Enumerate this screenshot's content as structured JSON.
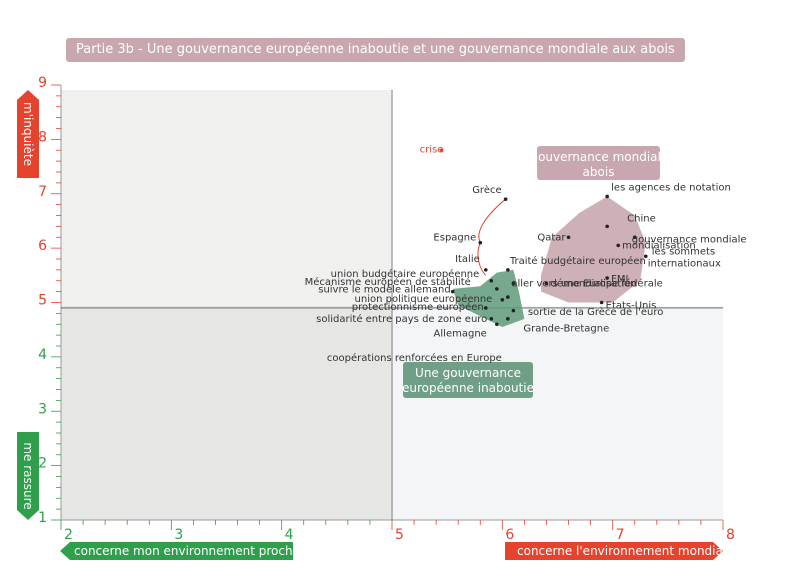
{
  "title": "Partie 3b - Une gouvernance européenne inaboutie et une gouvernance mondiale aux abois",
  "colors": {
    "title_bg": "#c9a7af",
    "red": "#e5432d",
    "green": "#2f9f4b",
    "green_zone": "#5f9a7a",
    "pink_zone": "#c9a7af"
  },
  "axis_labels": {
    "x_left": "concerne mon environnement proche",
    "x_right": "concerne l'environnement mondial",
    "y_top": "m'inquiète",
    "y_bottom": "me rassure"
  },
  "chart_data": {
    "type": "scatter",
    "xlim": [
      2,
      8
    ],
    "ylim": [
      1,
      9
    ],
    "x_ticks": [
      "2",
      "3",
      "4",
      "5",
      "6",
      "7",
      "8"
    ],
    "y_ticks": [
      "1",
      "2",
      "3",
      "4",
      "5",
      "6",
      "7",
      "8",
      "9"
    ],
    "grid": false,
    "groups": [
      {
        "label": "Une gouvernance européenne inaboutie"
      },
      {
        "label": "Une gouvernance mondiale aux abois"
      }
    ],
    "points": [
      {
        "label": "crise",
        "x": 5.45,
        "y": 7.8
      },
      {
        "label": "Grèce",
        "x": 6.03,
        "y": 6.9
      },
      {
        "label": "Espagne",
        "x": 5.8,
        "y": 6.1
      },
      {
        "label": "Italie",
        "x": 5.85,
        "y": 5.6
      },
      {
        "label": "union budgétaire européenne",
        "x": 5.9,
        "y": 5.4
      },
      {
        "label": "Mécanisme européen de stabilité",
        "x": 5.95,
        "y": 5.25
      },
      {
        "label": "suivre le modèle allemand",
        "x": 5.55,
        "y": 5.2
      },
      {
        "label": "union politique européenne",
        "x": 6.0,
        "y": 5.05
      },
      {
        "label": "protectionnisme européen",
        "x": 5.85,
        "y": 4.9
      },
      {
        "label": "solidarité entre pays de zone euro",
        "x": 5.9,
        "y": 4.7
      },
      {
        "label": "Allemagne",
        "x": 5.95,
        "y": 4.6
      },
      {
        "label": "coopérations renforcées en Europe",
        "x": 6.05,
        "y": 4.7
      },
      {
        "label": "Traité budgétaire européen",
        "x": 6.05,
        "y": 5.6
      },
      {
        "label": "aller vers une Europe fédérale",
        "x": 6.1,
        "y": 5.35
      },
      {
        "label": "sortie de la Grèce de l'euro",
        "x": 6.05,
        "y": 5.1
      },
      {
        "label": "Grande-Bretagne",
        "x": 6.1,
        "y": 4.85
      },
      {
        "label": "les agences de notation",
        "x": 6.95,
        "y": 6.95
      },
      {
        "label": "Chine",
        "x": 6.95,
        "y": 6.4
      },
      {
        "label": "gouvernance mondiale",
        "x": 7.2,
        "y": 6.2
      },
      {
        "label": "Qatar",
        "x": 6.6,
        "y": 6.2
      },
      {
        "label": "mondialisation",
        "x": 7.05,
        "y": 6.05
      },
      {
        "label": "les sommets internationaux",
        "x": 7.3,
        "y": 5.85
      },
      {
        "label": "FMI",
        "x": 6.95,
        "y": 5.45
      },
      {
        "label": "démondialisation",
        "x": 6.4,
        "y": 5.35
      },
      {
        "label": "Etats-Unis",
        "x": 6.9,
        "y": 5.0
      }
    ]
  }
}
